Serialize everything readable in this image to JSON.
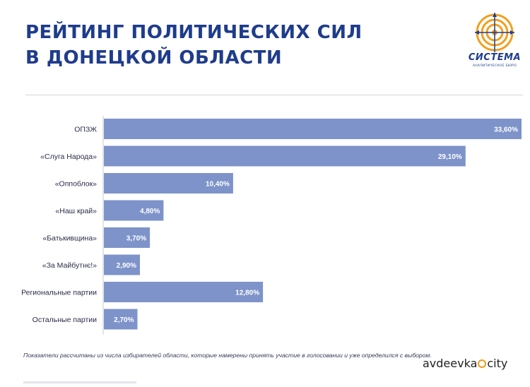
{
  "header": {
    "title_line1": "РЕЙТИНГ ПОЛИТИЧЕСКИХ СИЛ",
    "title_line2": "В ДОНЕЦКОЙ ОБЛАСТИ"
  },
  "logo": {
    "name": "СИСТЕМА",
    "subtitle": "АНАЛИТИЧЕСКОЕ БЮРО",
    "icon": "target-logo-icon"
  },
  "chart_data": {
    "type": "bar",
    "orientation": "horizontal",
    "categories": [
      "ОПЗЖ",
      "«Слуга Народа»",
      "«Оппоблок»",
      "«Наш край»",
      "«Батькивщина»",
      "«За Майбутнє!»",
      "Региональные партии",
      "Остальные партии"
    ],
    "values": [
      33.6,
      29.1,
      10.4,
      4.8,
      3.7,
      2.9,
      12.8,
      2.7
    ],
    "value_labels": [
      "33,60%",
      "29,10%",
      "10,40%",
      "4,80%",
      "3,70%",
      "2,90%",
      "12,80%",
      "2,70%"
    ],
    "xlim": [
      0,
      33.6
    ],
    "bar_color": "#7d93c9",
    "grid": false
  },
  "footnote": "Показатели рассчитаны из числа избирателей области, которые намерены принять участие в голосовании и уже определился с выбором.",
  "watermark": {
    "left": "avdeevka",
    "right": "city",
    "accent": "#f09a1e"
  },
  "colors": {
    "title": "#1f3c8c",
    "bar": "#7d93c9"
  }
}
